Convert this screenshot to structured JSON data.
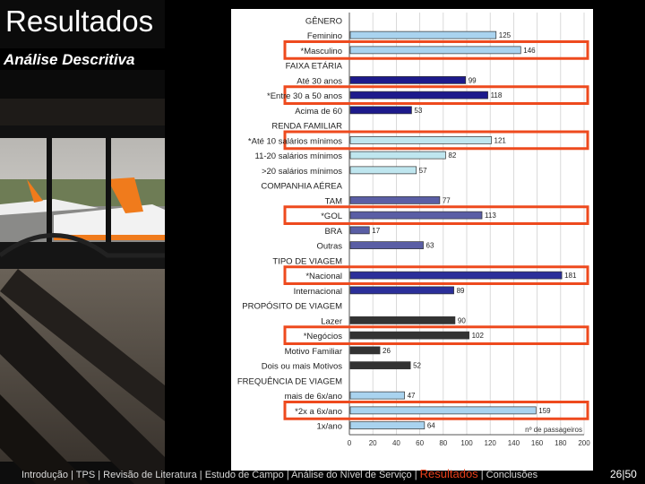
{
  "slide": {
    "title": "Resultados",
    "subtitle": "Análise Descritiva",
    "page_number": "26|50"
  },
  "footer": {
    "items": [
      {
        "label": "Introdução",
        "active": false
      },
      {
        "label": "TPS",
        "active": false
      },
      {
        "label": "Revisão de Literatura",
        "active": false
      },
      {
        "label": "Estudo de Campo",
        "active": false
      },
      {
        "label": "Análise do Nível de Serviço",
        "active": false
      },
      {
        "label": "Resultados",
        "active": true
      },
      {
        "label": "Conclusões",
        "active": false
      }
    ]
  },
  "colors": {
    "highlight_box": "#ee4a1e",
    "footer_active": "#e8401c",
    "light_blue": "#a9d3ef",
    "dark_blue": "#1d1a8c",
    "slate_blue": "#5a5ea5",
    "dark_gray": "#333333"
  },
  "chart_data": {
    "type": "bar",
    "orientation": "horizontal",
    "xlabel": "nº de passageiros",
    "xlim": [
      0,
      200
    ],
    "xticks": [
      0,
      20,
      40,
      60,
      80,
      100,
      120,
      140,
      160,
      180,
      200
    ],
    "groups": [
      {
        "header": "GÊNERO",
        "color": "#a9d3ef",
        "bars": [
          {
            "label": "Feminino",
            "value": 125,
            "highlight": false
          },
          {
            "label": "*Masculino",
            "value": 146,
            "highlight": true
          }
        ]
      },
      {
        "header": "FAIXA ETÁRIA",
        "color": "#1d1a8c",
        "bars": [
          {
            "label": "Até 30 anos",
            "value": 99,
            "highlight": false
          },
          {
            "label": "*Entre 30 a 50 anos",
            "value": 118,
            "highlight": true
          },
          {
            "label": "Acima de 60",
            "value": 53,
            "highlight": false
          }
        ]
      },
      {
        "header": "RENDA FAMILIAR",
        "color": "#bfe6ef",
        "bars": [
          {
            "label": "*Até 10 salários mínimos",
            "value": 121,
            "highlight": true
          },
          {
            "label": "11-20 salários mínimos",
            "value": 82,
            "highlight": false
          },
          {
            "label": ">20 salários mínimos",
            "value": 57,
            "highlight": false
          }
        ]
      },
      {
        "header": "COMPANHIA AÉREA",
        "color": "#5a5ea5",
        "bars": [
          {
            "label": "TAM",
            "value": 77,
            "highlight": false
          },
          {
            "label": "*GOL",
            "value": 113,
            "highlight": true
          },
          {
            "label": "BRA",
            "value": 17,
            "highlight": false
          },
          {
            "label": "Outras",
            "value": 63,
            "highlight": false
          }
        ]
      },
      {
        "header": "TIPO DE VIAGEM",
        "color": "#2b2f9a",
        "bars": [
          {
            "label": "*Nacional",
            "value": 181,
            "highlight": true
          },
          {
            "label": "Internacional",
            "value": 89,
            "highlight": false
          }
        ]
      },
      {
        "header": "PROPÓSITO DE VIAGEM",
        "color": "#333333",
        "bars": [
          {
            "label": "Lazer",
            "value": 90,
            "highlight": false
          },
          {
            "label": "*Negócios",
            "value": 102,
            "highlight": true
          },
          {
            "label": "Motivo Familiar",
            "value": 26,
            "highlight": false
          },
          {
            "label": "Dois ou mais Motivos",
            "value": 52,
            "highlight": false
          }
        ]
      },
      {
        "header": "FREQUÊNCIA DE VIAGEM",
        "color": "#a9d3ef",
        "bars": [
          {
            "label": "mais de 6x/ano",
            "value": 47,
            "highlight": false
          },
          {
            "label": "*2x a 6x/ano",
            "value": 159,
            "highlight": true
          },
          {
            "label": "1x/ano",
            "value": 64,
            "highlight": false
          }
        ]
      }
    ]
  }
}
